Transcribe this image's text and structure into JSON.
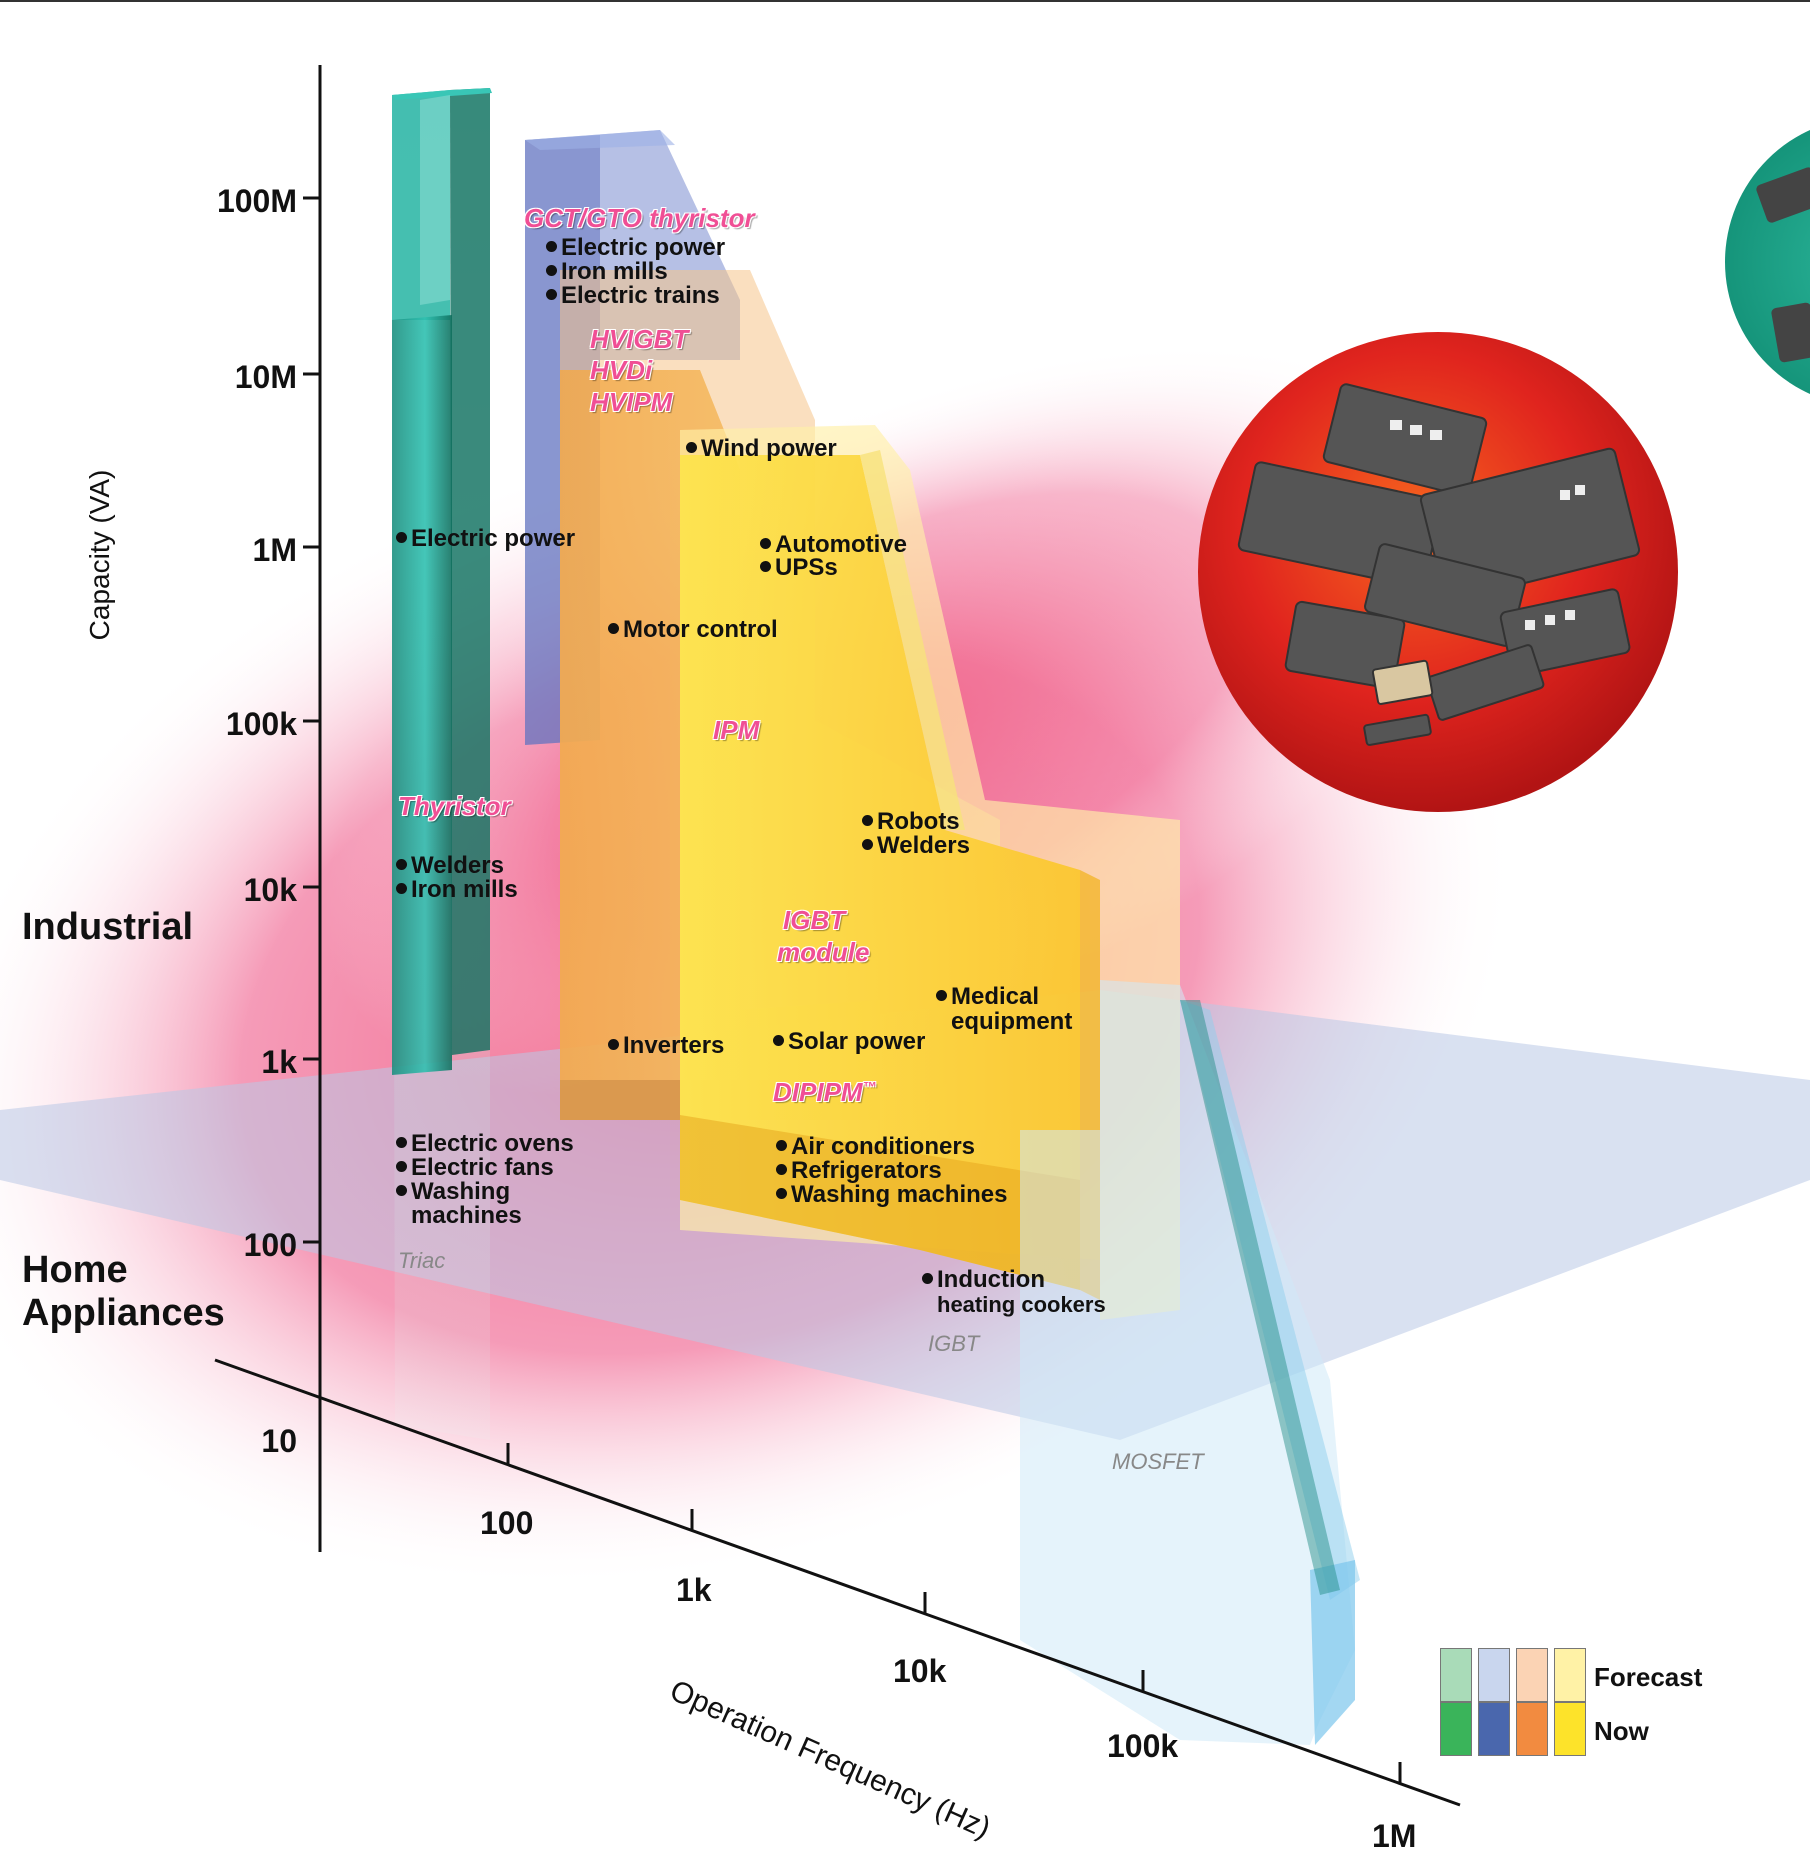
{
  "axes": {
    "y_label": "Capacity (VA)",
    "y_ticks": [
      "100M",
      "10M",
      "1M",
      "100k",
      "10k",
      "1k",
      "100",
      "10"
    ],
    "x_label": "Operation Frequency (Hz)",
    "x_ticks": [
      "100",
      "1k",
      "10k",
      "100k",
      "1M"
    ]
  },
  "zones": {
    "industrial": "Industrial",
    "home_line1": "Home",
    "home_line2": "Appliances"
  },
  "devices": {
    "gct_gto": "GCT/GTO thyristor",
    "hvigbt": "HVIGBT",
    "hvdi": "HVDi",
    "hvipm": "HVIPM",
    "ipm": "IPM",
    "thyristor": "Thyristor",
    "igbt_module_1": "IGBT",
    "igbt_module_2": "module",
    "dipipm": "DIPIPM",
    "dipipm_tm": "™",
    "triac": "Triac",
    "igbt": "IGBT",
    "mosfet": "MOSFET"
  },
  "applications": {
    "gct": [
      "Electric power",
      "Iron mills",
      "Electric trains"
    ],
    "wind": "Wind power",
    "electric_power": "Electric power",
    "automotive": "Automotive",
    "upss": "UPSs",
    "motor_control": "Motor control",
    "robots": "Robots",
    "welders_igbt": "Welders",
    "welders_thy": "Welders",
    "iron_mills_thy": "Iron mills",
    "medical_1": "Medical",
    "medical_2": "equipment",
    "inverters": "Inverters",
    "solar": "Solar power",
    "home_triac": [
      "Electric ovens",
      "Electric fans",
      "Washing",
      "machines"
    ],
    "home_dip": [
      "Air conditioners",
      "Refrigerators",
      "Washing machines"
    ],
    "induction_1": "Induction",
    "induction_2": "heating cookers"
  },
  "legend": {
    "forecast": "Forecast",
    "now": "Now",
    "forecast_colors": [
      "#a9dbb8",
      "#c9d6ee",
      "#fbd3b4",
      "#fff2a6"
    ],
    "now_colors": [
      "#3ab45a",
      "#4a67ad",
      "#f28b40",
      "#fde32a"
    ]
  },
  "colors": {
    "thyristor": "#1a9c8c",
    "gct": "#6f7fc4",
    "igbt": "#f2a23c",
    "ipm": "#fccf1d",
    "mosfet": "#b8e0f4",
    "glow": "#f0577f",
    "plane": "#b9c9e6",
    "device_label": "#f04f95"
  }
}
